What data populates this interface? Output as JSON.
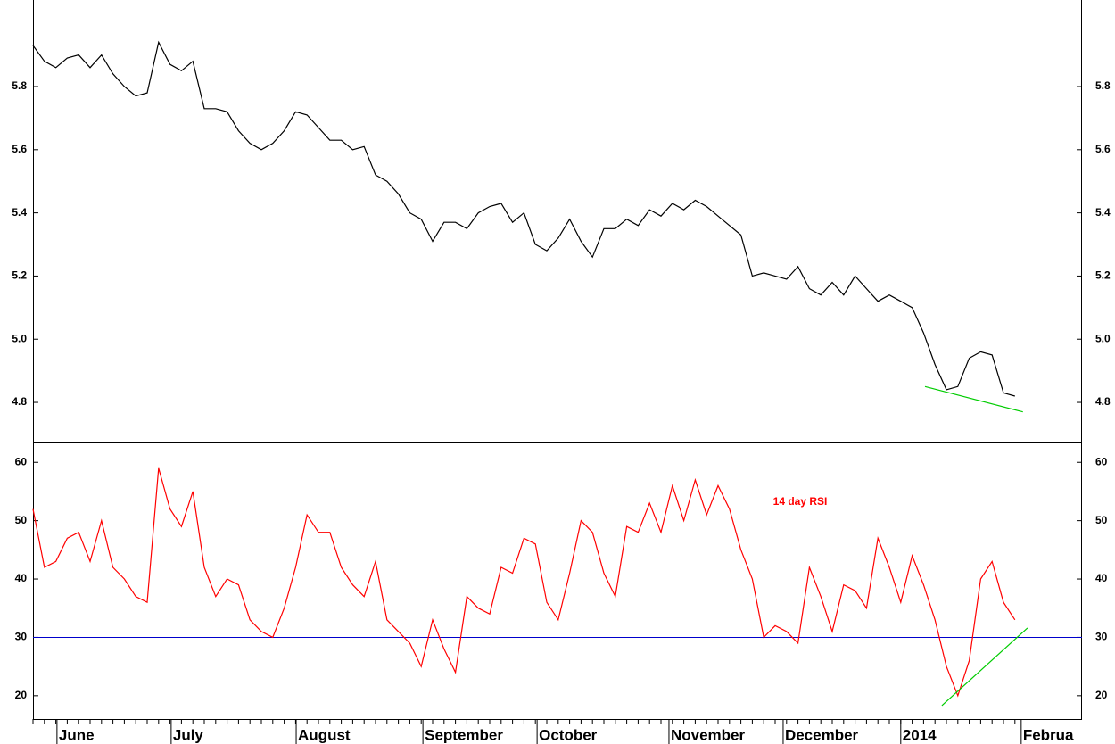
{
  "chart_data": [
    {
      "type": "line",
      "x": [
        0,
        2,
        4,
        6,
        8,
        10,
        12,
        14,
        16,
        18,
        20,
        22,
        24,
        26,
        28,
        30,
        32,
        34,
        36,
        38,
        40,
        42,
        44,
        46,
        48,
        50,
        52,
        54,
        56,
        58,
        60,
        62,
        64,
        66,
        68,
        70,
        72,
        74,
        76,
        78,
        80,
        82,
        84,
        86,
        88,
        90,
        92,
        94,
        96,
        98,
        100,
        102,
        104,
        106,
        108,
        110,
        112,
        114,
        116,
        118,
        120,
        122,
        124,
        126,
        128,
        130,
        132,
        134,
        136,
        138,
        140,
        142,
        144,
        146,
        148,
        150,
        152,
        154,
        156,
        158,
        160,
        162,
        164,
        166,
        168,
        170,
        172
      ],
      "xlim": [
        0,
        183.75
      ],
      "series": [
        {
          "color": "#000000",
          "values": [
            5.93,
            5.88,
            5.86,
            5.89,
            5.9,
            5.86,
            5.9,
            5.84,
            5.8,
            5.77,
            5.78,
            5.94,
            5.87,
            5.85,
            5.88,
            5.73,
            5.73,
            5.72,
            5.66,
            5.62,
            5.6,
            5.62,
            5.66,
            5.72,
            5.71,
            5.67,
            5.63,
            5.63,
            5.6,
            5.61,
            5.52,
            5.5,
            5.46,
            5.4,
            5.38,
            5.31,
            5.37,
            5.37,
            5.35,
            5.4,
            5.42,
            5.43,
            5.37,
            5.4,
            5.3,
            5.28,
            5.32,
            5.38,
            5.31,
            5.26,
            5.35,
            5.35,
            5.38,
            5.36,
            5.41,
            5.39,
            5.43,
            5.41,
            5.44,
            5.42,
            5.39,
            5.36,
            5.33,
            5.2,
            5.21,
            5.2,
            5.19,
            5.23,
            5.16,
            5.14,
            5.18,
            5.14,
            5.2,
            5.16,
            5.12,
            5.14,
            5.12,
            5.1,
            5.02,
            4.92,
            4.84,
            4.85,
            4.94,
            4.96,
            4.95,
            4.83,
            4.82
          ]
        }
      ],
      "ylim": [
        4.673,
        6.074
      ],
      "yticks": [
        4.8,
        {
          "value": 5,
          "label": "5.0"
        },
        5.2,
        5.4,
        5.6,
        5.8
      ],
      "trendline": {
        "color": "#00cc00",
        "x": [
          156.25,
          173.4
        ],
        "values": [
          4.85,
          4.77
        ]
      }
    },
    {
      "type": "line",
      "x": [
        0,
        2,
        4,
        6,
        8,
        10,
        12,
        14,
        16,
        18,
        20,
        22,
        24,
        26,
        28,
        30,
        32,
        34,
        36,
        38,
        40,
        42,
        44,
        46,
        48,
        50,
        52,
        54,
        56,
        58,
        60,
        62,
        64,
        66,
        68,
        70,
        72,
        74,
        76,
        78,
        80,
        82,
        84,
        86,
        88,
        90,
        92,
        94,
        96,
        98,
        100,
        102,
        104,
        106,
        108,
        110,
        112,
        114,
        116,
        118,
        120,
        122,
        124,
        126,
        128,
        130,
        132,
        134,
        136,
        138,
        140,
        142,
        144,
        146,
        148,
        150,
        152,
        154,
        156,
        158,
        160,
        162,
        164,
        166,
        168,
        170,
        172
      ],
      "xlim": [
        0,
        183.75
      ],
      "xticks": [
        {
          "value": 4.2,
          "label": "June"
        },
        {
          "value": 24.2,
          "label": "July"
        },
        {
          "value": 46.1,
          "label": "August"
        },
        {
          "value": 68.3,
          "label": "September"
        },
        {
          "value": 88.3,
          "label": "October"
        },
        {
          "value": 111.4,
          "label": "November"
        },
        {
          "value": 131.4,
          "label": "December"
        },
        {
          "value": 152,
          "label": "2014"
        },
        {
          "value": 173.1,
          "label": "Februa"
        }
      ],
      "series": [
        {
          "color": "#ff0000",
          "values": [
            52,
            42,
            43,
            47,
            48,
            43,
            50,
            42,
            40,
            37,
            36,
            59,
            52,
            49,
            55,
            42,
            37,
            40,
            39,
            33,
            31,
            30,
            35,
            42,
            51,
            48,
            48,
            42,
            39,
            37,
            43,
            33,
            31,
            29,
            25,
            33,
            28,
            24,
            37,
            35,
            34,
            42,
            41,
            47,
            46,
            36,
            33,
            41,
            50,
            48,
            41,
            37,
            49,
            48,
            53,
            48,
            56,
            50,
            57,
            51,
            56,
            52,
            45,
            40,
            30,
            32,
            31,
            29,
            42,
            37,
            31,
            39,
            38,
            35,
            47,
            42,
            36,
            44,
            39,
            33,
            25,
            20,
            26,
            40,
            43,
            36,
            33
          ]
        }
      ],
      "ylim": [
        16,
        63.4
      ],
      "yticks": [
        20,
        30,
        40,
        50,
        60
      ],
      "ref_line": {
        "value": 30,
        "color": "#0000cc"
      },
      "annotation": "14 day RSI",
      "trendline": {
        "color": "#00cc00",
        "x": [
          159.2,
          174.2
        ],
        "values": [
          18.3,
          31.6
        ]
      }
    }
  ]
}
